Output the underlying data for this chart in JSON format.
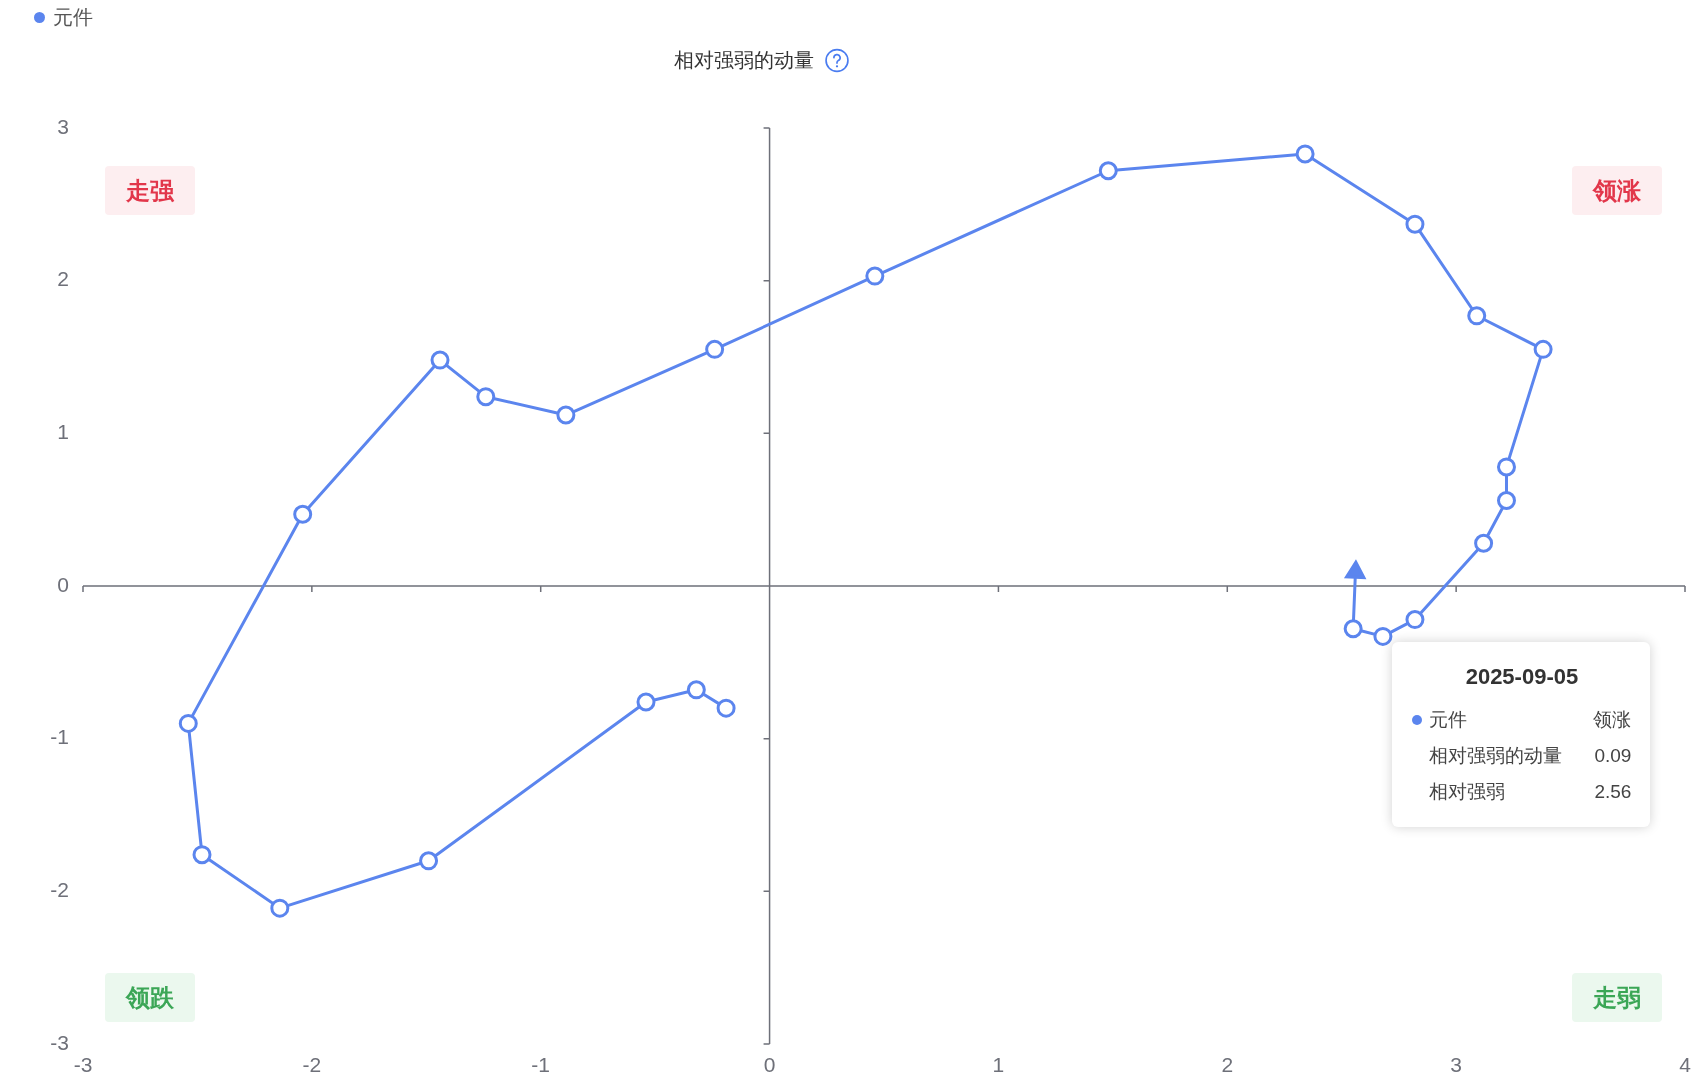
{
  "chart_data": {
    "type": "line",
    "ylabel": "相对强弱的动量",
    "legend": "top left",
    "marker": "circle",
    "xlim": [
      -3,
      4
    ],
    "xticks": [
      -3,
      -2,
      -1,
      0,
      1,
      2,
      3,
      4
    ],
    "ylim": [
      -3,
      3
    ],
    "yticks": [
      -3,
      -2,
      -1,
      0,
      1,
      2,
      3
    ],
    "series": [
      {
        "name": "元件",
        "color": "#5b85ee",
        "x": [
          -0.19,
          -0.32,
          -0.54,
          -1.49,
          -2.14,
          -2.48,
          -2.54,
          -2.04,
          -1.44,
          -1.24,
          -0.89,
          -0.24,
          0.46,
          1.48,
          2.34,
          2.82,
          3.09,
          3.38,
          3.22,
          3.22,
          3.12,
          2.82,
          2.68,
          2.55,
          2.56
        ],
        "values": [
          -0.8,
          -0.68,
          -0.76,
          -1.8,
          -2.11,
          -1.76,
          -0.9,
          0.47,
          1.48,
          1.24,
          1.12,
          1.55,
          2.03,
          2.72,
          2.83,
          2.37,
          1.77,
          1.55,
          0.78,
          0.56,
          0.28,
          -0.22,
          -0.33,
          -0.28,
          0.09
        ]
      }
    ],
    "annotations": [
      "走强",
      "领涨",
      "领跌",
      "走弱",
      "2025-09-05",
      "元件",
      "领涨",
      "相对强弱的动量",
      "0.09",
      "相对强弱",
      "2.56"
    ]
  }
}
